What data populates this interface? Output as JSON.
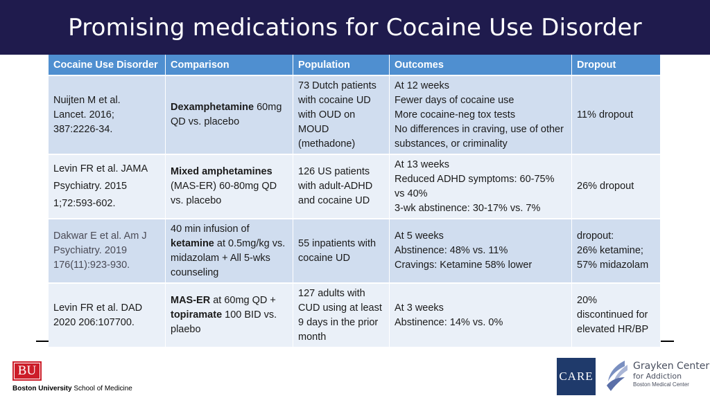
{
  "title": "Promising medications for Cocaine Use Disorder",
  "table": {
    "headers": [
      "Cocaine Use Disorder",
      "Comparison",
      "Population",
      "Outcomes",
      "Dropout"
    ],
    "rows": [
      {
        "study": [
          "Nuijten M et al.",
          "Lancet. 2016;",
          "387:2226-34."
        ],
        "comparison": {
          "bold": "Dexamphetamine",
          "text": " 60mg QD vs. placebo"
        },
        "population": "73 Dutch patients with cocaine UD with OUD on MOUD (methadone)",
        "outcomes": [
          "At 12 weeks",
          "Fewer days of cocaine use",
          "More cocaine-neg tox tests",
          "No differences in craving, use of other substances, or criminality"
        ],
        "dropout": "11% dropout"
      },
      {
        "study": [
          "Levin FR et al. JAMA",
          "Psychiatry. 2015",
          "1;72:593-602."
        ],
        "comparison": {
          "bold": "Mixed amphetamines",
          "text": " (MAS-ER)  60-80mg QD vs. placebo"
        },
        "population": "126 US patients with adult-ADHD and cocaine UD",
        "outcomes": [
          "At 13 weeks",
          "Reduced ADHD symptoms: 60-75% vs 40%",
          "3-wk abstinence: 30-17% vs. 7%"
        ],
        "dropout": "26% dropout"
      },
      {
        "study": [
          "Dakwar E et al. Am J",
          "Psychiatry. 2019",
          "176(11):923-930."
        ],
        "comparison": {
          "pre": "40 min infusion of ",
          "bold": "ketamine",
          "text": " at 0.5mg/kg vs. midazolam + All 5-wks counseling"
        },
        "population": "55 inpatients with cocaine UD",
        "outcomes": [
          "At 5 weeks",
          "Abstinence: 48% vs. 11%",
          "Cravings: Ketamine 58% lower"
        ],
        "dropout": [
          "dropout:",
          "26% ketamine;",
          "57% midazolam"
        ]
      },
      {
        "study": [
          "Levin FR et al. DAD",
          "2020 206:107700."
        ],
        "comparison": {
          "bold": "MAS-ER",
          "text": " at 60mg QD + ",
          "bold2": "topiramate",
          "text2": " 100 BID vs. plaebo"
        },
        "population": "127 adults with CUD using at least 9 days in the prior month",
        "outcomes": [
          "At 3 weeks",
          "Abstinence: 14% vs. 0%"
        ],
        "dropout": "20% discontinued for elevated HR/BP"
      }
    ]
  },
  "footer": {
    "bu_logo": "BU",
    "bu_name_bold": "Boston University",
    "bu_name_rest": " School of Medicine",
    "care_logo": "CARE",
    "grayken_line1": "Grayken Center",
    "grayken_line2": "for Addiction",
    "grayken_line3": "Boston Medical Center"
  },
  "colors": {
    "title_bar": "#1f1b4d",
    "header": "#4f8fd0",
    "row_dark": "#d0ddef",
    "row_light": "#eaf0f8",
    "bu_red": "#cc1d29"
  }
}
